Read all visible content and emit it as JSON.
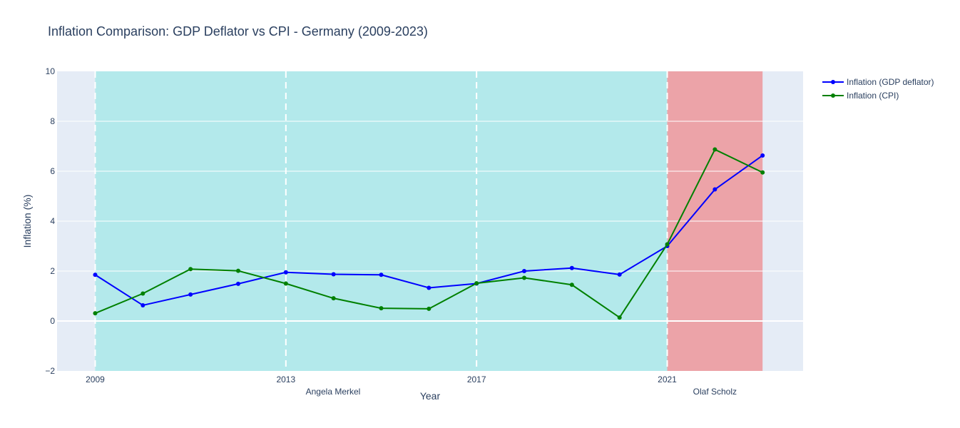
{
  "chart_data": {
    "type": "line",
    "title": "Inflation Comparison: GDP Deflator vs CPI - Germany (2009-2023)",
    "xlabel": "Year",
    "ylabel": "Inflation (%)",
    "xlim": [
      2008.2,
      2023.85
    ],
    "ylim": [
      -2,
      10
    ],
    "x_ticks": [
      2009,
      2013,
      2017,
      2021
    ],
    "y_ticks": [
      -2,
      0,
      2,
      4,
      6,
      8,
      10
    ],
    "grid": true,
    "legend_position": "top-right",
    "x": [
      2009,
      2010,
      2011,
      2012,
      2013,
      2014,
      2015,
      2016,
      2017,
      2018,
      2019,
      2020,
      2021,
      2022,
      2023
    ],
    "series": [
      {
        "name": "Inflation (GDP deflator)",
        "color": "#0000ff",
        "values": [
          1.85,
          0.63,
          1.06,
          1.49,
          1.95,
          1.87,
          1.85,
          1.33,
          1.5,
          2.0,
          2.12,
          1.86,
          3.0,
          5.27,
          6.63
        ]
      },
      {
        "name": "Inflation (CPI)",
        "color": "#008000",
        "values": [
          0.31,
          1.1,
          2.08,
          2.01,
          1.5,
          0.91,
          0.51,
          0.49,
          1.51,
          1.73,
          1.45,
          0.14,
          3.07,
          6.87,
          5.95
        ]
      }
    ],
    "terms": [
      {
        "label": "Angela Merkel",
        "start": 2009,
        "end": 2021,
        "color": "#b3e9eb",
        "label_x": 2013.99
      },
      {
        "label": "Olaf Scholz",
        "start": 2021,
        "end": 2023,
        "color": "#eca3a8",
        "label_x": 2022.0
      }
    ],
    "term_boundaries": [
      2009,
      2013,
      2017,
      2021
    ]
  }
}
